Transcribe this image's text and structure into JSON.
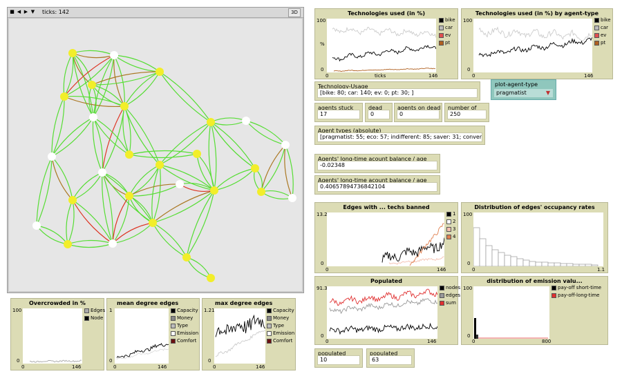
{
  "world": {
    "ticks_label": "ticks: 142",
    "btn_3d": "3D"
  },
  "plots": {
    "tech_used": {
      "title": "Technologies used (in %)",
      "ymax": "100",
      "ymin": "0",
      "xmin": "0",
      "xmax": "146",
      "xlabel": "ticks",
      "ylabel": "%",
      "legend": [
        {
          "label": "bike",
          "color": "#000000"
        },
        {
          "label": "car",
          "color": "#bbbbbb"
        },
        {
          "label": "ev",
          "color": "#e05050"
        },
        {
          "label": "pt",
          "color": "#b06020"
        }
      ]
    },
    "tech_by_type": {
      "title": "Technologies used (in %) by agent-type",
      "ymax": "100",
      "ymin": "0",
      "xmin": "0",
      "xmax": "146",
      "legend": [
        {
          "label": "bike",
          "color": "#000000"
        },
        {
          "label": "car",
          "color": "#bbbbbb"
        },
        {
          "label": "ev",
          "color": "#e05050"
        },
        {
          "label": "pt",
          "color": "#b06020"
        }
      ]
    },
    "edges_banned": {
      "title": "Edges with ... techs banned",
      "ymax": "13.2",
      "ymin": "0",
      "xmin": "0",
      "xmax": "146",
      "legend": [
        {
          "label": "1",
          "color": "#000000"
        },
        {
          "label": "2",
          "color": "#ffffff"
        },
        {
          "label": "3",
          "color": "#f4c0b0"
        },
        {
          "label": "4",
          "color": "#e08050"
        }
      ]
    },
    "occupancy": {
      "title": "Distribution of edges' occupancy rates",
      "ymax": "100",
      "ymin": "0",
      "xmin": "0",
      "xmax": "1.1"
    },
    "populated": {
      "title": "Populated",
      "ymax": "91.3",
      "ymin": "0",
      "xmin": "0",
      "xmax": "146",
      "legend": [
        {
          "label": "nodes",
          "color": "#000000"
        },
        {
          "label": "edges",
          "color": "#999999"
        },
        {
          "label": "sum",
          "color": "#e03030"
        }
      ]
    },
    "emission": {
      "title": "distribution of emission valu...",
      "ymax": "100",
      "ymin": "0",
      "xmin": "0",
      "xmax": "800",
      "legend": [
        {
          "label": "pay-off short-time",
          "color": "#000000"
        },
        {
          "label": "pay-off-long-time",
          "color": "#e03030"
        }
      ]
    },
    "overcrowded": {
      "title": "Overcrowded in %",
      "ymax": "100",
      "ymin": "0",
      "xmin": "0",
      "xmax": "146",
      "legend": [
        {
          "label": "Edges",
          "color": "#aaaaaa"
        },
        {
          "label": "Node",
          "color": "#000000"
        }
      ]
    },
    "mean_degree": {
      "title": "mean degree edges",
      "ymax": "1",
      "ymin": "0",
      "xmin": "0",
      "xmax": "146",
      "legend": [
        {
          "label": "Capacity",
          "color": "#000000"
        },
        {
          "label": "Money",
          "color": "#888888"
        },
        {
          "label": "Type",
          "color": "#bbbbbb"
        },
        {
          "label": "Emission",
          "color": "#ffffff"
        },
        {
          "label": "Comfort",
          "color": "#6b1010"
        }
      ]
    },
    "max_degree": {
      "title": "max degree edges",
      "ymax": "1.21",
      "ymin": "0",
      "xmin": "0",
      "xmax": "146",
      "legend": [
        {
          "label": "Capacity",
          "color": "#000000"
        },
        {
          "label": "Money",
          "color": "#888888"
        },
        {
          "label": "Type",
          "color": "#bbbbbb"
        },
        {
          "label": "Emission",
          "color": "#ffffff"
        },
        {
          "label": "Comfort",
          "color": "#6b1010"
        }
      ]
    }
  },
  "monitors": {
    "tech_usage": {
      "label": "Technology-Usage",
      "value": "[bike: 80;  car: 140;  ev: 0;  pt: 30; ]"
    },
    "agents_stuck": {
      "label": "agents  stuck",
      "value": "17"
    },
    "dead_ends": {
      "label": "dead ends",
      "value": "0"
    },
    "agents_dead_ends": {
      "label": "agents on dead ends",
      "value": "0"
    },
    "num_agents": {
      "label": "number of agents",
      "value": "250"
    },
    "agent_types": {
      "label": "Agent types (absolute)",
      "value": "[pragmatist: 55;  eco: 57;  indifferent: 85;  saver: 31;  convenient: 22; ]"
    },
    "balance_mean": {
      "label": "Agents' long-time acount balance / age (mean)",
      "value": "-0.02348"
    },
    "balance_max": {
      "label": "Agents' long-time acount balance / age (max)",
      "value": "0.40657894736842104"
    },
    "populated_nodes": {
      "label": "populated nodes",
      "value": "10"
    },
    "populated_edges": {
      "label": "populated edges",
      "value": "63"
    }
  },
  "chooser": {
    "label": "plot-agent-type",
    "value": "pragmatist"
  },
  "colors": {
    "panel": "#dcdcb5",
    "edge_green": "#55dd33",
    "edge_red": "#dd3322",
    "edge_brown": "#aa7722",
    "node_yellow": "#f2ee2a",
    "node_white": "#ffffff"
  }
}
